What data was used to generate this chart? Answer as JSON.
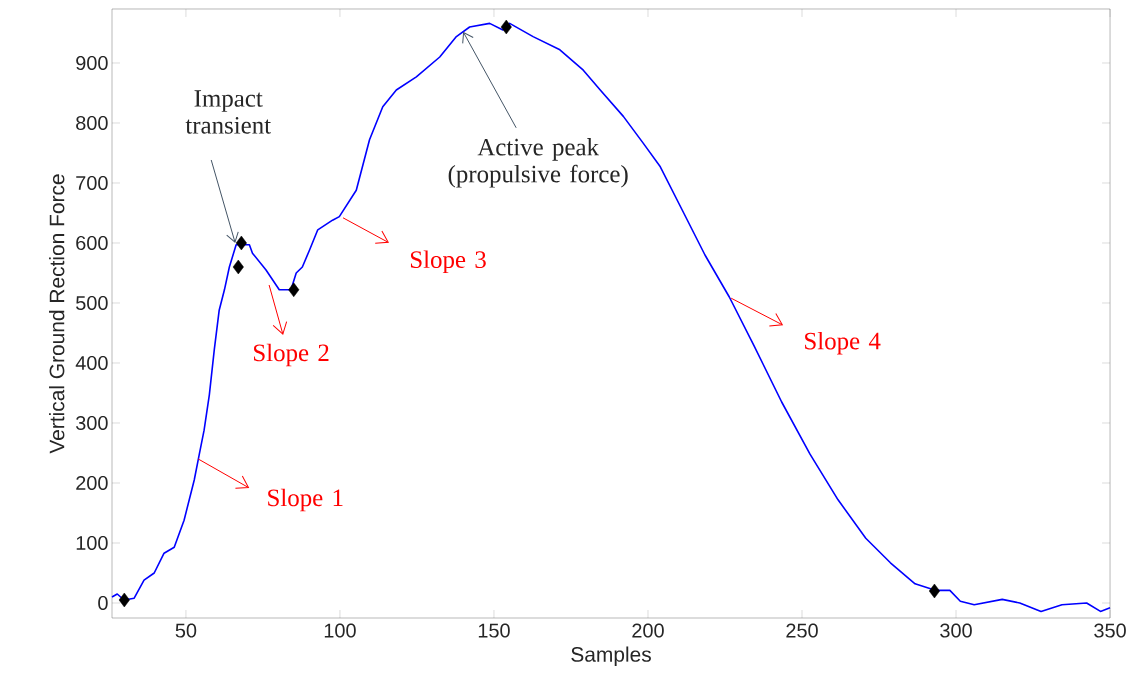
{
  "chart_data": {
    "type": "line",
    "xlabel": "Samples",
    "ylabel": "Vertical Ground Rection Force",
    "xlim": [
      26,
      350
    ],
    "ylim": [
      -25,
      990
    ],
    "xticks": [
      50,
      100,
      150,
      200,
      250,
      300,
      350
    ],
    "yticks": [
      0,
      100,
      200,
      300,
      400,
      500,
      600,
      700,
      800,
      900
    ],
    "grid": false,
    "marker": "none",
    "line_style": "solid",
    "series": [
      {
        "color": "#0000ff",
        "x": [
          26,
          27.7,
          29.9,
          33.2,
          36.4,
          39.7,
          42.9,
          46.2,
          49.4,
          52.7,
          54.3,
          55.9,
          57.6,
          59.2,
          60.8,
          62.5,
          64.1,
          66.3,
          70.6,
          71.6,
          76,
          80.3,
          84.1,
          85.8,
          87.8,
          90.1,
          92.8,
          97.6,
          99.8,
          105.3,
          109.6,
          113.9,
          118.3,
          124.8,
          132.4,
          137.8,
          142.1,
          148.6,
          152.9,
          155.1,
          162.7,
          171.4,
          179,
          184.5,
          192,
          198.5,
          204,
          211.6,
          218.5,
          226.4,
          234.4,
          243.4,
          252.6,
          261.7,
          270.7,
          278.7,
          286.7,
          293.5,
          298,
          301.4,
          305.9,
          315,
          320.7,
          327.6,
          334.4,
          342.4,
          346.9,
          350
        ],
        "values": [
          10,
          15,
          5,
          8,
          38,
          50,
          83,
          93,
          138,
          205,
          247,
          288,
          347,
          422,
          488,
          522,
          560,
          597,
          597,
          583,
          555,
          522,
          522,
          550,
          560,
          588,
          622,
          638,
          644,
          688,
          772,
          827,
          855,
          877,
          910,
          944,
          960,
          966,
          955,
          966,
          944,
          922,
          888,
          855,
          811,
          766,
          727,
          650,
          580,
          510,
          429,
          335,
          248,
          172,
          108,
          67,
          32,
          21,
          21,
          3,
          -3,
          6,
          0,
          -14,
          -3,
          0,
          -14,
          -8
        ]
      },
      {
        "type": "scatter",
        "color": "#000000",
        "marker": "diamond",
        "x": [
          30,
          67,
          68,
          85,
          154,
          293
        ],
        "values": [
          5,
          560,
          600,
          522,
          960,
          20
        ]
      }
    ],
    "annotations": [
      {
        "text": "Impact transient",
        "x": 66,
        "y": 600
      },
      {
        "text": "Active peak (propulsive force)",
        "x": 140,
        "y": 952
      },
      {
        "text": "Slope 1",
        "x": 54,
        "y": 240
      },
      {
        "text": "Slope 2",
        "x": 77,
        "y": 530
      },
      {
        "text": "Slope 3",
        "x": 101,
        "y": 642
      },
      {
        "text": "Slope 4",
        "x": 227,
        "y": 508
      }
    ]
  }
}
